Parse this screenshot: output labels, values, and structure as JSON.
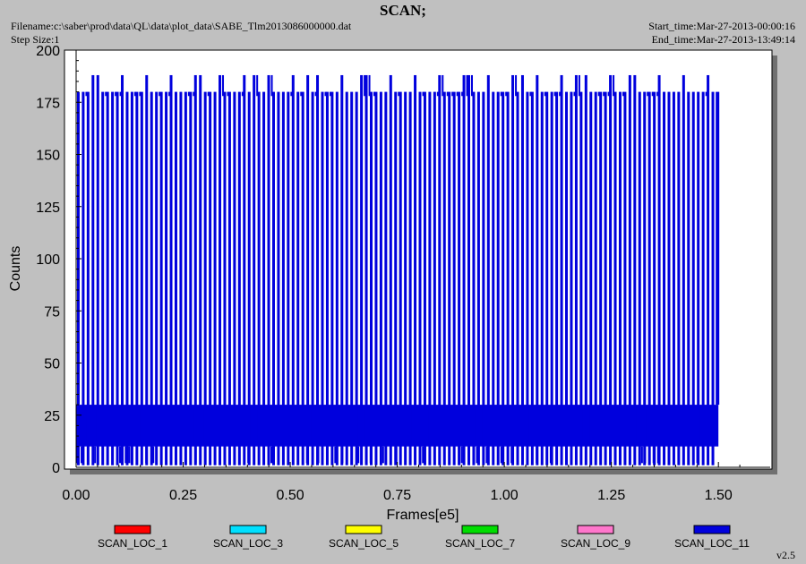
{
  "header": {
    "title": "SCAN;",
    "filename": "Filename:c:\\saber\\prod\\data\\QL\\data\\plot_data\\SABE_Tlm2013086000000.dat",
    "step_size": "Step Size:1",
    "start_time": "Start_time:Mar-27-2013-00:00:16",
    "end_time": "End_time:Mar-27-2013-13:49:14"
  },
  "version": "v2.5",
  "chart_data": {
    "type": "line",
    "title": "SCAN;",
    "xlabel": "Frames[e5]",
    "ylabel": "Counts",
    "xlim": [
      0,
      1.6
    ],
    "ylim": [
      0,
      200
    ],
    "x_ticks": [
      0.0,
      0.25,
      0.5,
      0.75,
      1.0,
      1.25,
      1.5
    ],
    "x_tick_labels": [
      "0.00",
      "0.25",
      "0.50",
      "0.75",
      "1.00",
      "1.25",
      "1.50"
    ],
    "y_ticks": [
      0,
      25,
      50,
      75,
      100,
      125,
      150,
      175,
      200
    ],
    "y_tick_labels": [
      "0",
      "25",
      "50",
      "75",
      "100",
      "125",
      "150",
      "175",
      "200"
    ],
    "grid": false,
    "legend_position": "bottom",
    "data_extent_x": [
      0.0,
      1.5
    ],
    "baseline_band": [
      10,
      30
    ],
    "spike_max": 180,
    "spike_peak": 188,
    "spike_spacing": 0.0114,
    "series": [
      {
        "name": "SCAN_LOC_1",
        "color": "#ff0000"
      },
      {
        "name": "SCAN_LOC_3",
        "color": "#00e0ff"
      },
      {
        "name": "SCAN_LOC_5",
        "color": "#ffff00"
      },
      {
        "name": "SCAN_LOC_7",
        "color": "#00dd00"
      },
      {
        "name": "SCAN_LOC_9",
        "color": "#ff77cc"
      },
      {
        "name": "SCAN_LOC_11",
        "color": "#0000dd"
      }
    ]
  }
}
